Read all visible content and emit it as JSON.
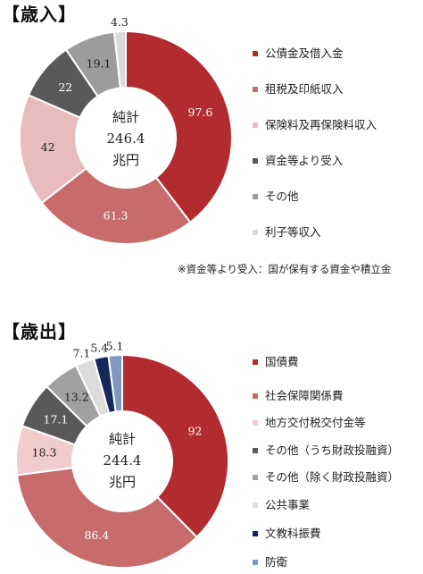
{
  "chart_data": [
    {
      "type": "pie",
      "title": "【歳入】",
      "center": [
        "純計",
        "246.4",
        "兆円"
      ],
      "slices": [
        {
          "label": "公債金及借入金",
          "value": 97.6,
          "value_text": "97.6",
          "color": "#b22b2e"
        },
        {
          "label": "租税及印紙収入",
          "value": 61.3,
          "value_text": "61.3",
          "color": "#c86b6c"
        },
        {
          "label": "保険料及再保険料収入",
          "value": 42,
          "value_text": "42",
          "color": "#e8bcbc"
        },
        {
          "label": "資金等より受入",
          "value": 22,
          "value_text": "22",
          "color": "#595959"
        },
        {
          "label": "その他",
          "value": 19.1,
          "value_text": "19.1",
          "color": "#9c9c9c"
        },
        {
          "label": "利子等収入",
          "value": 4.3,
          "value_text": "4.3",
          "color": "#dadada"
        }
      ],
      "note": "※資金等より受入：国が保有する資金や積立金"
    },
    {
      "type": "pie",
      "title": "【歳出】",
      "center": [
        "純計",
        "244.4",
        "兆円"
      ],
      "slices": [
        {
          "label": "国債費",
          "value": 92,
          "value_text": "92",
          "color": "#b22b2e"
        },
        {
          "label": "社会保障関係費",
          "value": 86.4,
          "value_text": "86.4",
          "color": "#c86b6c"
        },
        {
          "label": "地方交付税交付金等",
          "value": 18.3,
          "value_text": "18.3",
          "color": "#f0cccc"
        },
        {
          "label": "その他（うち財政投融資）",
          "value": 17.1,
          "value_text": "17.1",
          "color": "#595959"
        },
        {
          "label": "その他（除く財政投融資）",
          "value": 13.2,
          "value_text": "13.2",
          "color": "#a0a0a0"
        },
        {
          "label": "公共事業",
          "value": 7.1,
          "value_text": "7.1",
          "color": "#dcdcdc"
        },
        {
          "label": "文教科振費",
          "value": 5.4,
          "value_text": "5.4",
          "color": "#14285a"
        },
        {
          "label": "防衛",
          "value": 5.1,
          "value_text": "5.1",
          "color": "#7f98c0"
        }
      ]
    }
  ]
}
